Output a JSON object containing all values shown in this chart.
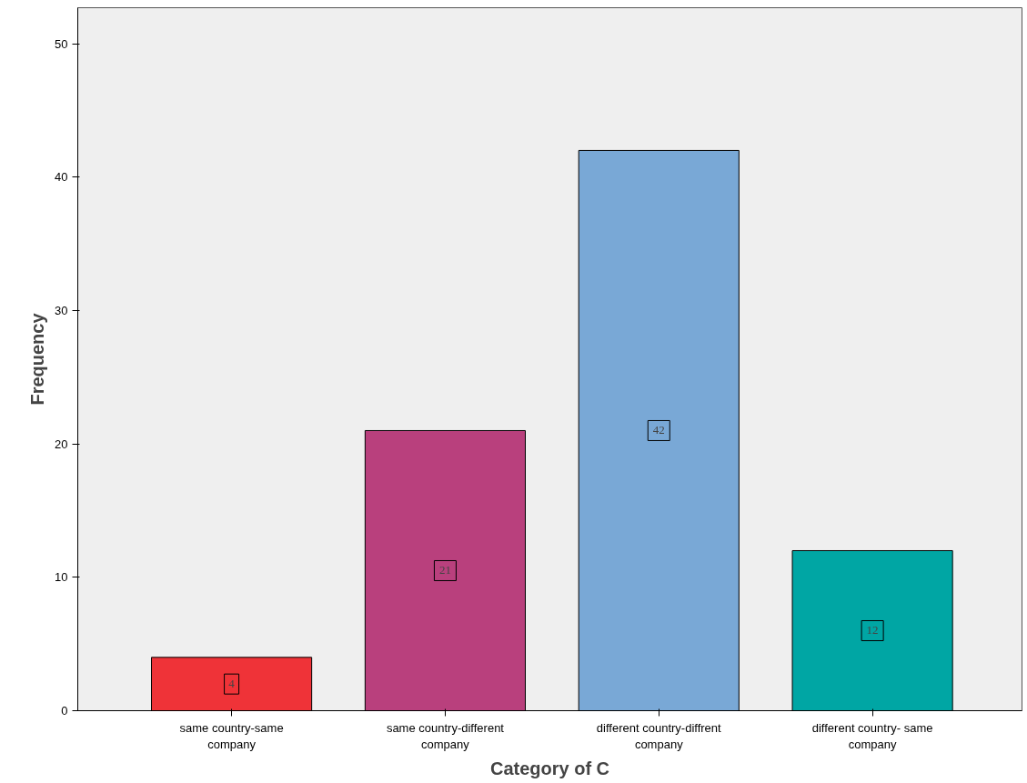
{
  "chart_data": {
    "type": "bar",
    "xlabel": "Category of C",
    "ylabel": "Frequency",
    "categories": [
      "same country-same company",
      "same country-different company",
      "different country-diffrent company",
      "different country- same company"
    ],
    "values": [
      4,
      21,
      42,
      12
    ],
    "colors": [
      "#ef3338",
      "#b9407d",
      "#79a8d6",
      "#00a6a4"
    ],
    "ylim": [
      0,
      52.7
    ],
    "yticks": [
      0,
      10,
      20,
      30,
      40,
      50
    ],
    "grid": false,
    "data_labels": true
  }
}
